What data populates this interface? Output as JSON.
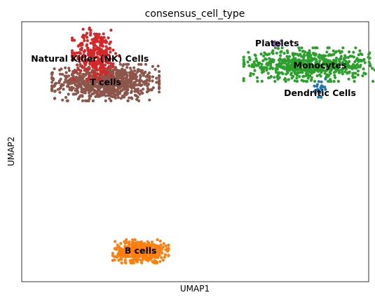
{
  "chart_data": {
    "type": "scatter",
    "title": "consensus_cell_type",
    "xlabel": "UMAP1",
    "ylabel": "UMAP2",
    "grid": false,
    "legend": "on-data",
    "xlim": [
      -6.4,
      11.4
    ],
    "ylim": [
      -4.6,
      14.2
    ],
    "series": [
      {
        "name": "T cells",
        "color": "#8c564b",
        "center": [
          -2.1,
          9.8
        ],
        "spread": [
          1.25,
          0.6
        ],
        "count": 900,
        "label_at": [
          -2.1,
          9.8
        ]
      },
      {
        "name": "Natural Killer (NK) Cells",
        "color": "#d62728",
        "center": [
          -2.6,
          11.9
        ],
        "spread": [
          0.55,
          0.85
        ],
        "count": 300,
        "label_at": [
          -2.9,
          11.5
        ]
      },
      {
        "name": "Monocytes",
        "color": "#2ca02c",
        "center": [
          8.4,
          11.1
        ],
        "spread": [
          1.55,
          0.55
        ],
        "count": 650,
        "label_at": [
          8.9,
          11.0
        ]
      },
      {
        "name": "B cells",
        "color": "#ff7f0e",
        "center": [
          -0.3,
          -2.4
        ],
        "spread": [
          0.65,
          0.38
        ],
        "count": 450,
        "label_at": [
          -0.3,
          -2.4
        ]
      },
      {
        "name": "Dendritic Cells",
        "color": "#1f77b4",
        "center": [
          8.9,
          9.4
        ],
        "spread": [
          0.13,
          0.3
        ],
        "count": 25,
        "label_at": [
          8.9,
          9.0
        ]
      },
      {
        "name": "Platelets",
        "color": "#9467bd",
        "center": [
          6.7,
          12.6
        ],
        "spread": [
          0.15,
          0.1
        ],
        "count": 10,
        "label_at": [
          6.7,
          12.6
        ]
      }
    ]
  }
}
